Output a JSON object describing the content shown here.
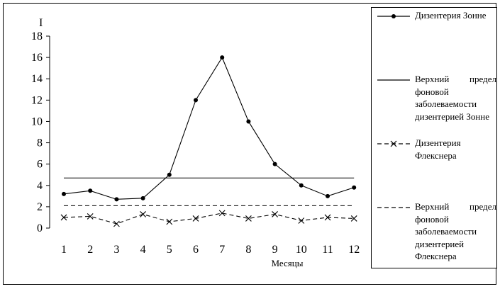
{
  "chart_data": {
    "type": "line",
    "ylabel": "I",
    "xlabel": "Месяцы",
    "ylim": [
      0,
      18
    ],
    "yticks": [
      0,
      2,
      4,
      6,
      8,
      10,
      12,
      14,
      16,
      18
    ],
    "categories": [
      "1",
      "2",
      "3",
      "4",
      "5",
      "6",
      "7",
      "8",
      "9",
      "10",
      "11",
      "12"
    ],
    "legend_position": "right",
    "series": [
      {
        "name": "Дизентерия Зонне",
        "style": "solid-dot-marker",
        "values": [
          3.2,
          3.5,
          2.7,
          2.8,
          5.0,
          12.0,
          16.0,
          10.0,
          6.0,
          4.0,
          3.0,
          3.8
        ]
      },
      {
        "name": "Верхний предел фоновой заболеваемости дизентерией Зонне",
        "style": "solid-line",
        "values": [
          4.7,
          4.7,
          4.7,
          4.7,
          4.7,
          4.7,
          4.7,
          4.7,
          4.7,
          4.7,
          4.7,
          4.7
        ]
      },
      {
        "name": "Дизентерия Флекснера",
        "style": "dashed-x-marker",
        "values": [
          1.0,
          1.1,
          0.4,
          1.3,
          0.6,
          0.9,
          1.4,
          0.9,
          1.3,
          0.7,
          1.0,
          0.9
        ]
      },
      {
        "name": "Верхний предел фоновой заболеваемости дизентерией Флекснера",
        "style": "dashed-line",
        "values": [
          2.1,
          2.1,
          2.1,
          2.1,
          2.1,
          2.1,
          2.1,
          2.1,
          2.1,
          2.1,
          2.1,
          2.1
        ]
      }
    ]
  }
}
